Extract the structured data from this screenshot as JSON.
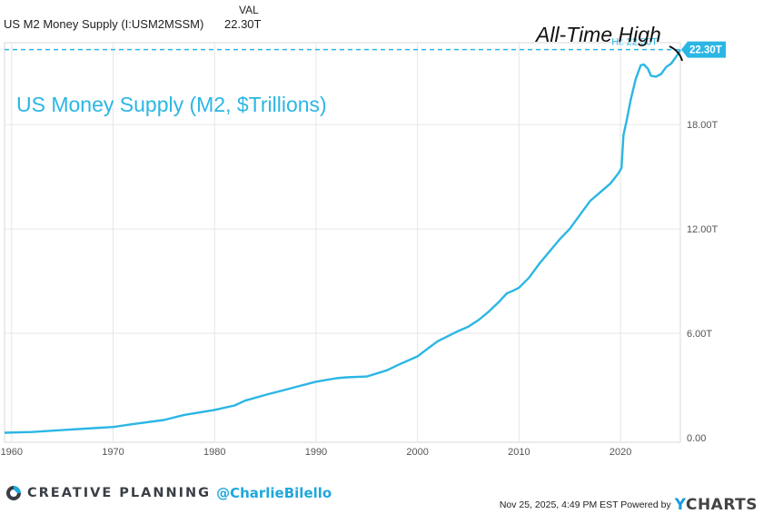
{
  "header": {
    "series_label": "US M2 Money Supply (I:USM2MSSM)",
    "val_header": "VAL",
    "val_value": "22.30T"
  },
  "annotation": {
    "title": "US Money Supply (M2, $Trillions)",
    "ath_text": "All-Time High",
    "hi_label": "Hi: 22.30T",
    "last_value_label": "22.30T"
  },
  "colors": {
    "line": "#2bb6e4",
    "grid": "#e6e6e6",
    "axis_text": "#555555",
    "badge_text": "#ffffff"
  },
  "footer": {
    "brand": "CREATIVE PLANNING",
    "handle": "@CharlieBilello",
    "timestamp": "Nov 25, 2025, 4:49 PM EST Powered by",
    "ycharts_y": "Y",
    "ycharts_rest": "CHARTS"
  },
  "chart_data": {
    "type": "line",
    "title": "US Money Supply (M2, $Trillions)",
    "xlabel": "",
    "ylabel": "",
    "xlim": [
      1959.3,
      2025.9
    ],
    "ylim": [
      -0.05,
      22.7
    ],
    "x_ticks": [
      1960,
      1970,
      1980,
      1990,
      2000,
      2010,
      2020
    ],
    "y_ticks": [
      0,
      6,
      12,
      18
    ],
    "y_tick_labels": [
      "0.00",
      "6.00T",
      "12.00T",
      "18.00T"
    ],
    "grid": true,
    "hi_value": 22.3,
    "series": [
      {
        "x": [
          1959.3,
          1962,
          1965,
          1968,
          1970,
          1972,
          1975,
          1977,
          1980,
          1982,
          1983,
          1985,
          1987,
          1988,
          1990,
          1992,
          1993,
          1995,
          1997,
          1998,
          2000,
          2001,
          2002,
          2004,
          2005,
          2006,
          2007,
          2008,
          2008.8,
          2009.3,
          2010,
          2011,
          2011.5,
          2012,
          2013,
          2014,
          2015,
          2016,
          2017,
          2018,
          2019,
          2019.8,
          2020.1,
          2020.3,
          2020.6,
          2021,
          2021.5,
          2022,
          2022.3,
          2022.7,
          2023,
          2023.5,
          2024,
          2024.5,
          2025,
          2025.5,
          2025.9
        ],
        "y": [
          0.29,
          0.33,
          0.44,
          0.55,
          0.62,
          0.79,
          1.02,
          1.31,
          1.6,
          1.86,
          2.13,
          2.46,
          2.76,
          2.92,
          3.22,
          3.42,
          3.47,
          3.52,
          3.88,
          4.16,
          4.68,
          5.12,
          5.55,
          6.13,
          6.38,
          6.76,
          7.24,
          7.79,
          8.3,
          8.42,
          8.62,
          9.2,
          9.6,
          10.0,
          10.7,
          11.4,
          12.0,
          12.8,
          13.6,
          14.1,
          14.6,
          15.2,
          15.5,
          17.4,
          18.2,
          19.4,
          20.6,
          21.4,
          21.45,
          21.2,
          20.8,
          20.75,
          20.9,
          21.3,
          21.5,
          21.9,
          22.3
        ]
      }
    ]
  }
}
